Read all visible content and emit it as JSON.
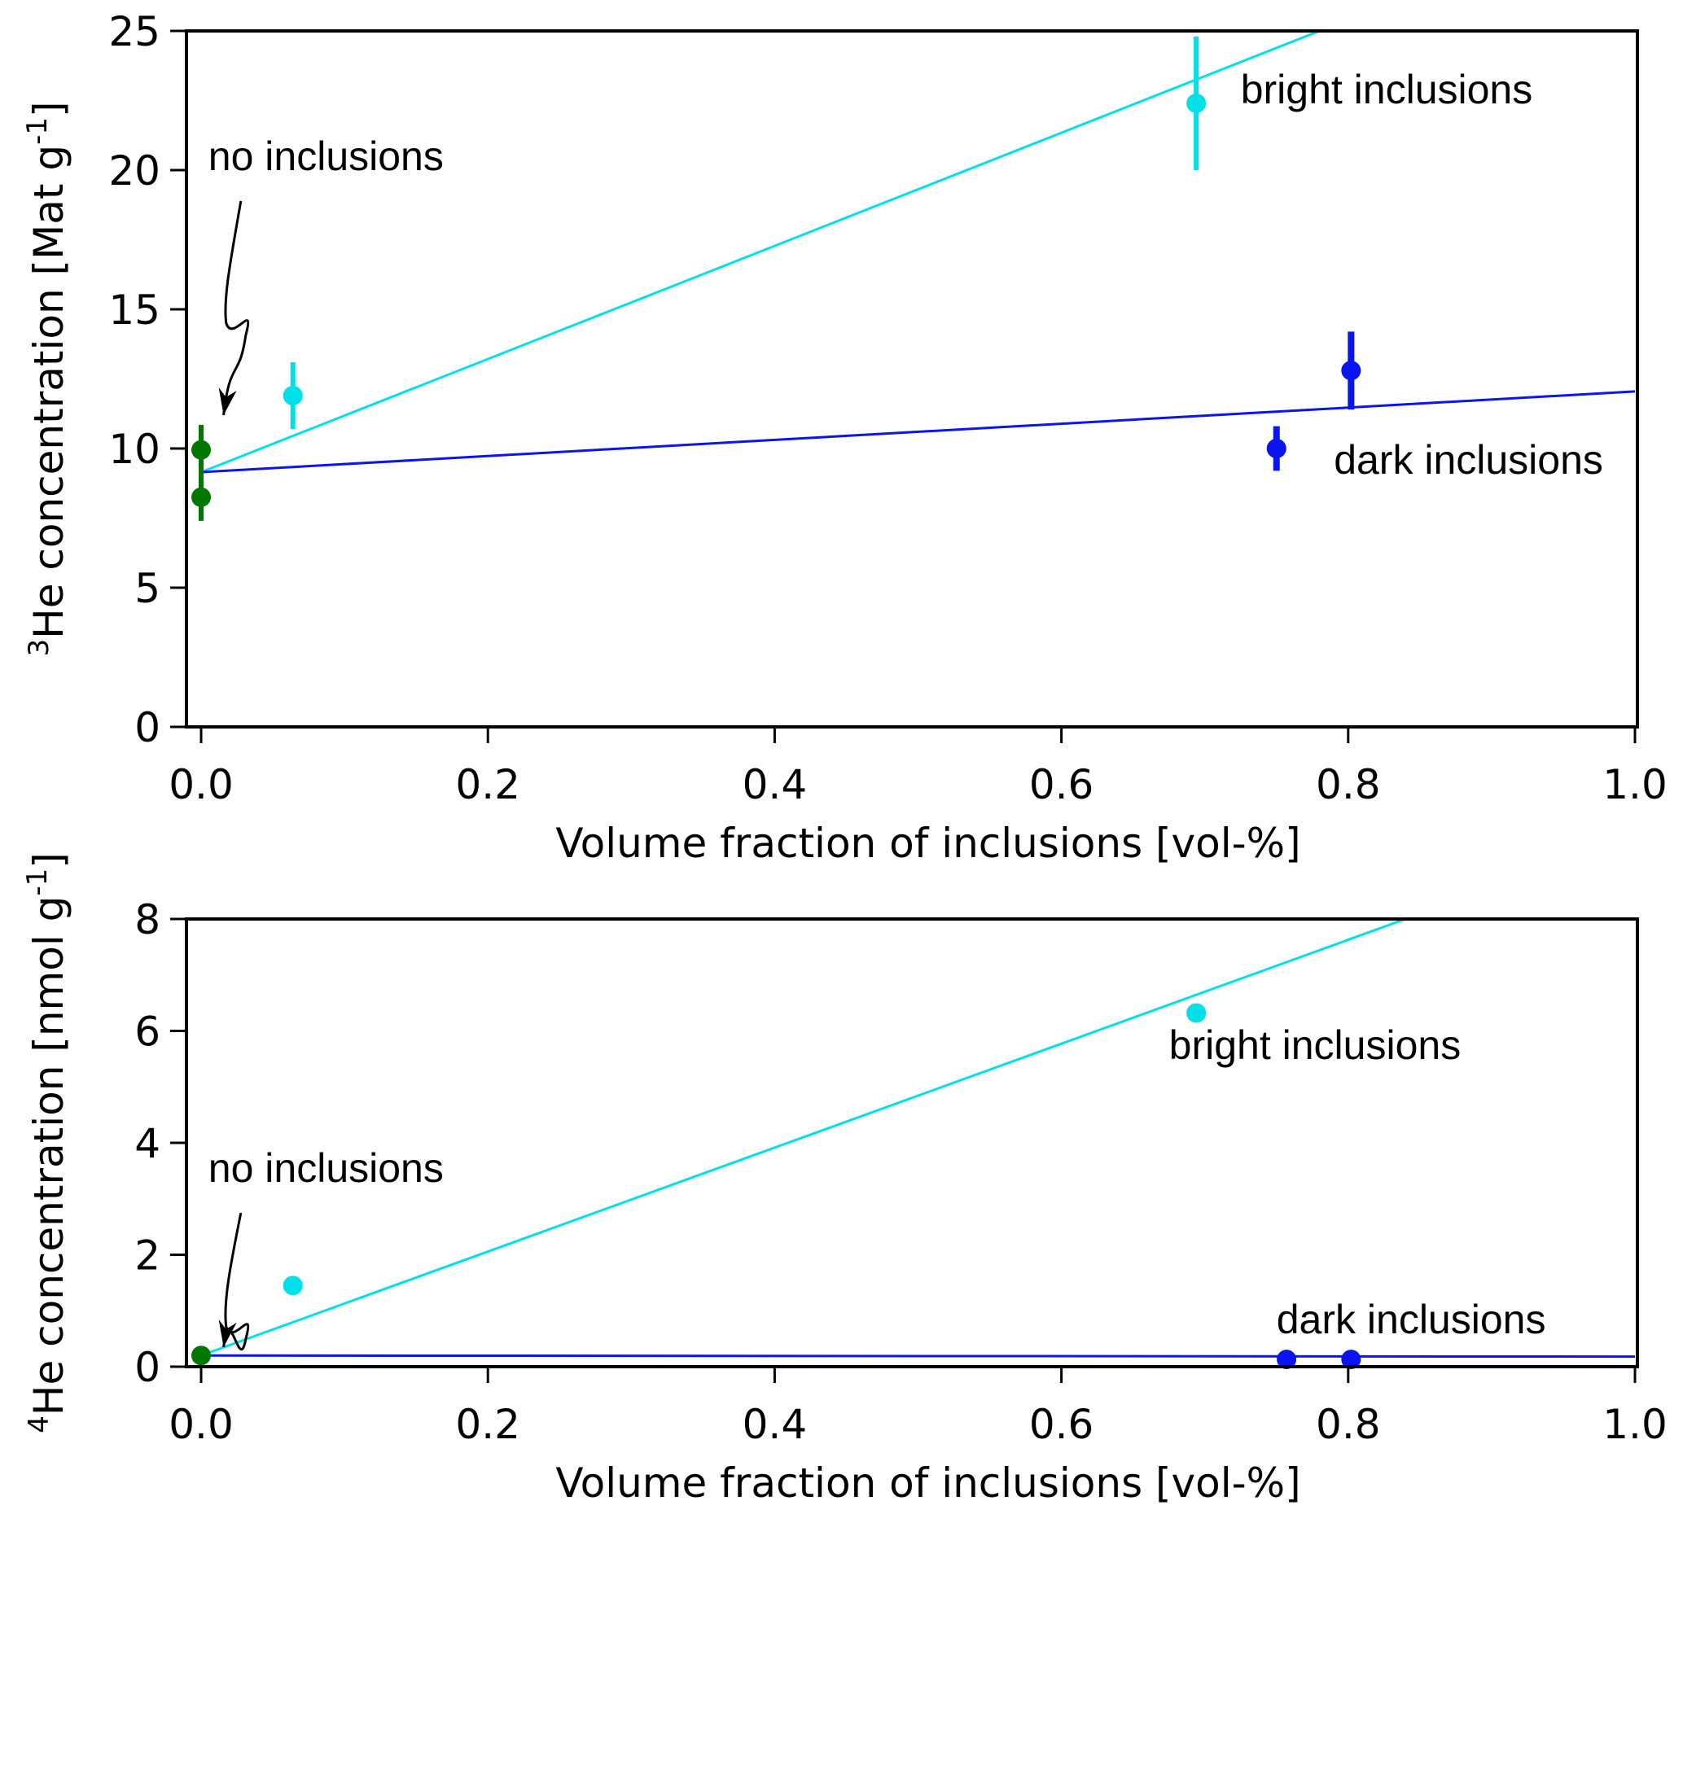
{
  "chart_data": [
    {
      "type": "scatter",
      "panel": "top",
      "title": "",
      "xlabel": "Volume fraction of inclusions [vol-%]",
      "ylabel": {
        "sup": "3",
        "main": "He concentration [Mat g",
        "unit_sup": "-1",
        "close": "]"
      },
      "xlim": [
        -0.03,
        1.0
      ],
      "ylim": [
        0,
        25
      ],
      "xticks": [
        0.0,
        0.2,
        0.4,
        0.6,
        0.8,
        1.0
      ],
      "xtick_labels": [
        "0.0",
        "0.2",
        "0.4",
        "0.6",
        "0.8",
        "1.0"
      ],
      "yticks": [
        0,
        5,
        10,
        15,
        20,
        25
      ],
      "ytick_labels": [
        "0",
        "5",
        "10",
        "15",
        "20",
        "25"
      ],
      "grid": false,
      "series": [
        {
          "name": "no inclusions",
          "color": "#007800",
          "points": [
            {
              "x": 0.0,
              "y": 9.95,
              "err": 0.9
            },
            {
              "x": 0.0,
              "y": 8.25,
              "err": 0.85
            }
          ]
        },
        {
          "name": "bright inclusions",
          "color": "#00e0e8",
          "points": [
            {
              "x": 0.064,
              "y": 11.9,
              "err": 1.2
            },
            {
              "x": 0.694,
              "y": 22.4,
              "err": 2.4
            }
          ]
        },
        {
          "name": "dark inclusions",
          "color": "#0a14f0",
          "points": [
            {
              "x": 0.75,
              "y": 10.0,
              "err": 0.8
            },
            {
              "x": 0.802,
              "y": 12.8,
              "err": 1.4
            }
          ]
        }
      ],
      "fit_lines": [
        {
          "name": "bright fit",
          "color": "#00e0e8",
          "x": [
            0.0,
            0.78
          ],
          "y": [
            9.15,
            25.0
          ]
        },
        {
          "name": "dark fit",
          "color": "#0a14f0",
          "x": [
            0.0,
            1.0
          ],
          "y": [
            9.15,
            12.05
          ]
        }
      ],
      "annotations": [
        {
          "text": "no inclusions",
          "x": 0.005,
          "y": 20.0,
          "arrow_to": [
            0.01,
            11.2
          ]
        },
        {
          "text": "bright inclusions",
          "x": 0.725,
          "y": 22.4
        },
        {
          "text": "dark inclusions",
          "x": 0.79,
          "y": 9.1
        }
      ]
    },
    {
      "type": "scatter",
      "panel": "bottom",
      "title": "",
      "xlabel": "Volume fraction of inclusions [vol-%]",
      "ylabel": {
        "sup": "4",
        "main": "He concentration [nmol g",
        "unit_sup": "-1",
        "close": "]"
      },
      "xlim": [
        -0.03,
        1.0
      ],
      "ylim": [
        0,
        8
      ],
      "xticks": [
        0.0,
        0.2,
        0.4,
        0.6,
        0.8,
        1.0
      ],
      "xtick_labels": [
        "0.0",
        "0.2",
        "0.4",
        "0.6",
        "0.8",
        "1.0"
      ],
      "yticks": [
        0,
        2,
        4,
        6,
        8
      ],
      "ytick_labels": [
        "0",
        "2",
        "4",
        "6",
        "8"
      ],
      "grid": false,
      "series": [
        {
          "name": "no inclusions",
          "color": "#007800",
          "points": [
            {
              "x": 0.0,
              "y": 0.2,
              "err": 0.03
            }
          ]
        },
        {
          "name": "bright inclusions",
          "color": "#00e0e8",
          "points": [
            {
              "x": 0.064,
              "y": 1.45,
              "err": 0.03
            },
            {
              "x": 0.694,
              "y": 6.32,
              "err": 0.1
            }
          ]
        },
        {
          "name": "dark inclusions",
          "color": "#0a14f0",
          "points": [
            {
              "x": 0.757,
              "y": 0.13,
              "err": 0.02
            },
            {
              "x": 0.802,
              "y": 0.13,
              "err": 0.02
            }
          ]
        }
      ],
      "fit_lines": [
        {
          "name": "bright fit",
          "color": "#00e0e8",
          "x": [
            0.0,
            0.84
          ],
          "y": [
            0.2,
            8.0
          ]
        },
        {
          "name": "dark fit",
          "color": "#0a14f0",
          "x": [
            0.0,
            1.0
          ],
          "y": [
            0.2,
            0.18
          ]
        }
      ],
      "annotations": [
        {
          "text": "no inclusions",
          "x": 0.005,
          "y": 3.3,
          "arrow_to": [
            0.01,
            0.35
          ]
        },
        {
          "text": "bright inclusions",
          "x": 0.675,
          "y": 5.5
        },
        {
          "text": "dark inclusions",
          "x": 0.75,
          "y": 0.6
        }
      ]
    }
  ]
}
